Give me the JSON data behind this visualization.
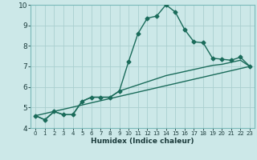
{
  "title": "",
  "xlabel": "Humidex (Indice chaleur)",
  "bg_color": "#cce8e8",
  "grid_color": "#aacfcf",
  "line_color": "#1a6b5a",
  "xlim": [
    -0.5,
    23.5
  ],
  "ylim": [
    4,
    10
  ],
  "yticks": [
    4,
    5,
    6,
    7,
    8,
    9,
    10
  ],
  "xticks": [
    0,
    1,
    2,
    3,
    4,
    5,
    6,
    7,
    8,
    9,
    10,
    11,
    12,
    13,
    14,
    15,
    16,
    17,
    18,
    19,
    20,
    21,
    22,
    23
  ],
  "main_line_x": [
    0,
    1,
    2,
    3,
    4,
    5,
    6,
    7,
    8,
    9,
    10,
    11,
    12,
    13,
    14,
    15,
    16,
    17,
    18,
    19,
    20,
    21,
    22,
    23
  ],
  "main_line_y": [
    4.6,
    4.4,
    4.8,
    4.65,
    4.65,
    5.3,
    5.5,
    5.5,
    5.5,
    5.8,
    7.25,
    8.6,
    9.35,
    9.45,
    10.0,
    9.65,
    8.8,
    8.2,
    8.15,
    7.4,
    7.35,
    7.3,
    7.45,
    7.0
  ],
  "line2_x": [
    0,
    1,
    2,
    3,
    4,
    5,
    6,
    7,
    8,
    9,
    10,
    11,
    12,
    13,
    14,
    15,
    16,
    17,
    18,
    19,
    20,
    21,
    22,
    23
  ],
  "line2_y": [
    4.6,
    4.4,
    4.8,
    4.65,
    4.65,
    5.3,
    5.5,
    5.5,
    5.5,
    5.8,
    5.95,
    6.1,
    6.25,
    6.4,
    6.55,
    6.65,
    6.75,
    6.85,
    6.95,
    7.05,
    7.1,
    7.2,
    7.3,
    7.0
  ],
  "line3_x": [
    0,
    23
  ],
  "line3_y": [
    4.6,
    7.0
  ],
  "marker": "D",
  "markersize": 2.5,
  "linewidth": 1.0
}
